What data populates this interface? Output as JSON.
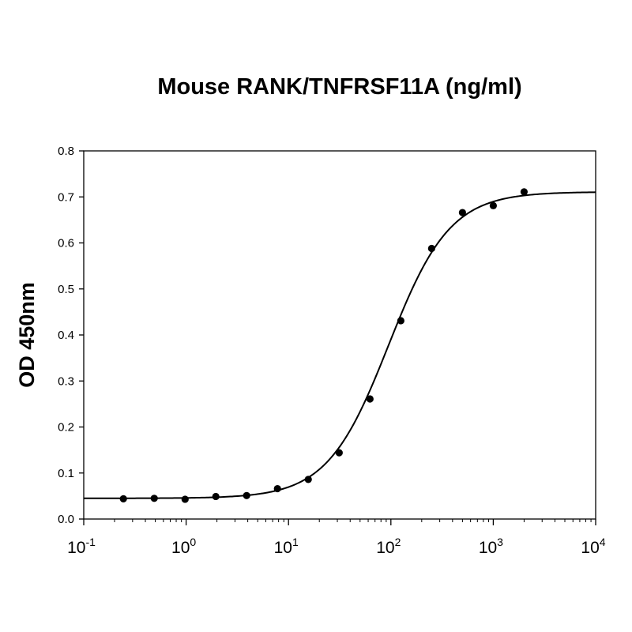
{
  "chart_data": {
    "type": "scatter",
    "title": "Mouse RANK/TNFRSF11A (ng/ml)",
    "xlabel": "",
    "ylabel": "OD 450nm",
    "x_scale": "log",
    "xlim": [
      0.1,
      10000
    ],
    "ylim": [
      0,
      0.8
    ],
    "grid": false,
    "legend": "none",
    "x_ticks": [
      {
        "base": "10",
        "exp": "-1",
        "value": 0.1
      },
      {
        "base": "10",
        "exp": "0",
        "value": 1
      },
      {
        "base": "10",
        "exp": "1",
        "value": 10
      },
      {
        "base": "10",
        "exp": "2",
        "value": 100
      },
      {
        "base": "10",
        "exp": "3",
        "value": 1000
      },
      {
        "base": "10",
        "exp": "4",
        "value": 10000
      }
    ],
    "y_ticks": [
      "0.0",
      "0.1",
      "0.2",
      "0.3",
      "0.4",
      "0.5",
      "0.6",
      "0.7",
      "0.8"
    ],
    "series": [
      {
        "x": [
          0.244,
          0.488,
          0.977,
          1.95,
          3.9,
          7.8,
          15.6,
          31.25,
          62.5,
          125,
          250,
          500,
          1000,
          2000
        ],
        "y": [
          0.044,
          0.045,
          0.043,
          0.049,
          0.051,
          0.066,
          0.086,
          0.144,
          0.261,
          0.431,
          0.588,
          0.666,
          0.681,
          0.711
        ],
        "color": "#000000"
      }
    ],
    "fit_curve": {
      "model": "4PL",
      "bottom": 0.045,
      "top": 0.711,
      "ec50": 95,
      "hill": 1.45,
      "color": "#000000"
    }
  }
}
